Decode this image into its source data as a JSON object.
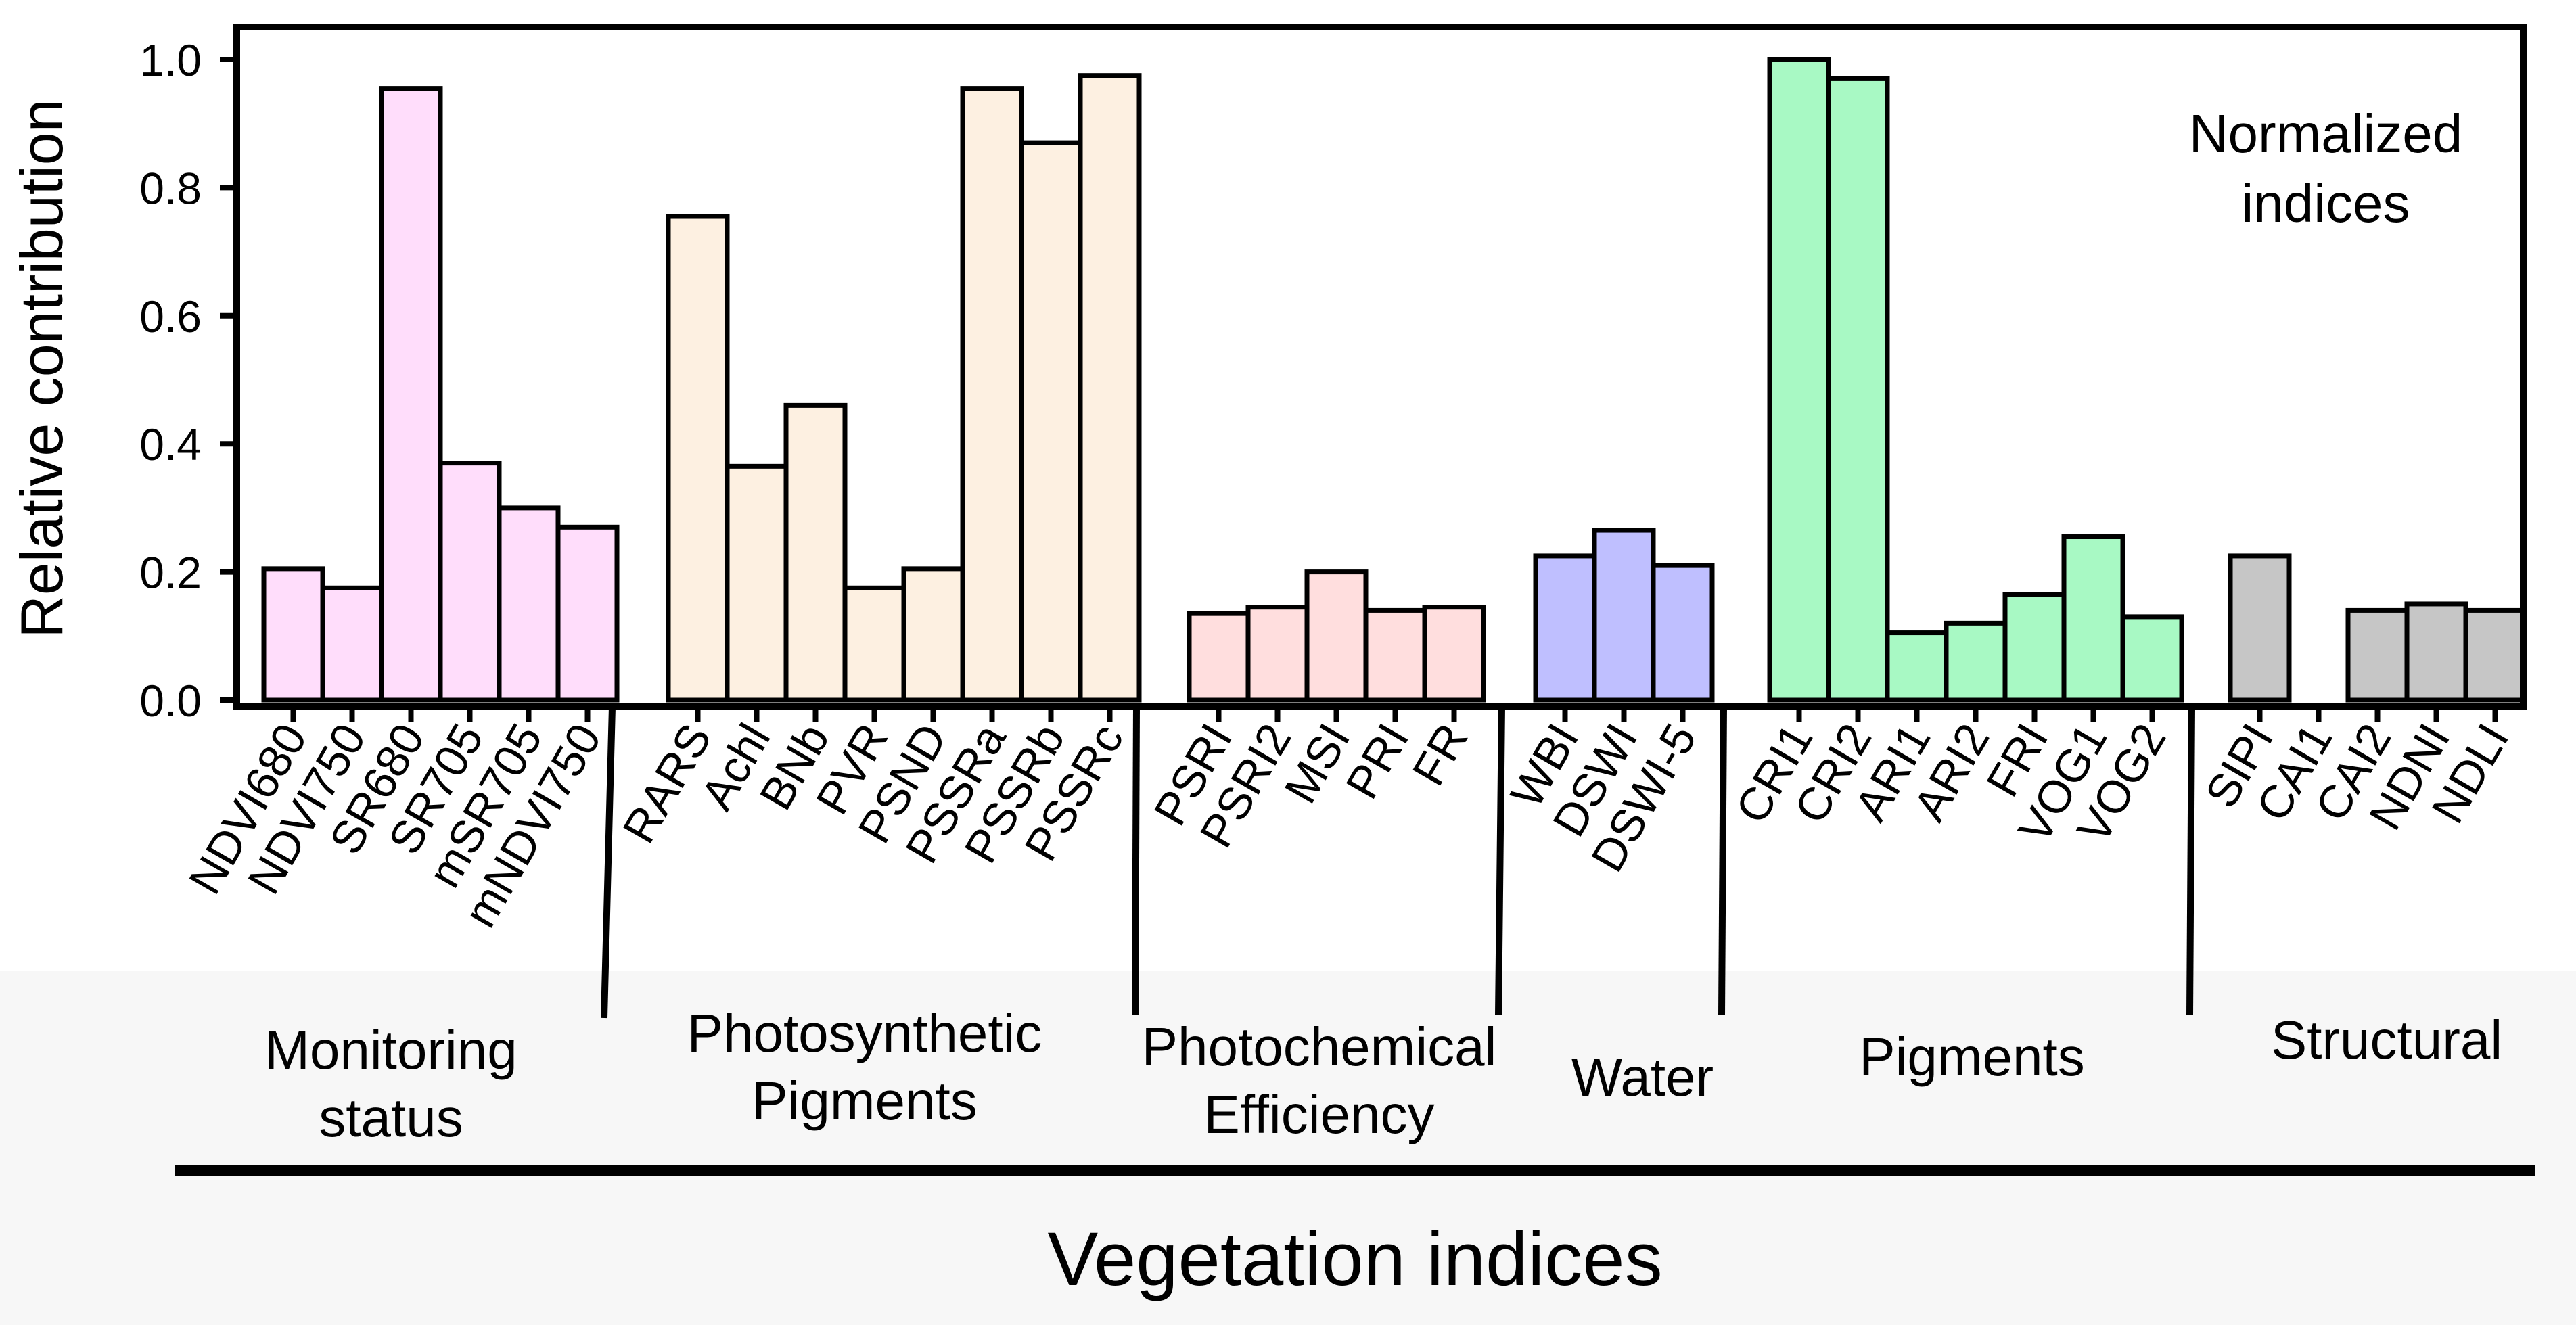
{
  "chart_data": {
    "type": "bar",
    "ylabel": "Relative contribution",
    "xlabel": "Vegetation indices",
    "annotation": [
      "Normalized",
      "indices"
    ],
    "ylim": [
      0,
      1.0
    ],
    "yticks": [
      "0.0",
      "0.2",
      "0.4",
      "0.6",
      "0.8",
      "1.0"
    ],
    "groups": [
      {
        "name": "Monitoring status",
        "name_lines": [
          "Monitoring",
          "status"
        ],
        "color": "#FFDDFB",
        "bars": [
          {
            "label": "NDVI680",
            "value": 0.205
          },
          {
            "label": "NDVI750",
            "value": 0.175
          },
          {
            "label": "SR680",
            "value": 0.955
          },
          {
            "label": "SR705",
            "value": 0.37
          },
          {
            "label": "mSR705",
            "value": 0.3
          },
          {
            "label": "mNDVI750",
            "value": 0.27
          }
        ]
      },
      {
        "name": "Photosynthetic Pigments",
        "name_lines": [
          "Photosynthetic",
          "Pigments"
        ],
        "color": "#FDF0E1",
        "bars": [
          {
            "label": "RARS",
            "value": 0.755
          },
          {
            "label": "Achl",
            "value": 0.365
          },
          {
            "label": "BNb",
            "value": 0.46
          },
          {
            "label": "PVR",
            "value": 0.175
          },
          {
            "label": "PSND",
            "value": 0.205
          },
          {
            "label": "PSSRa",
            "value": 0.955
          },
          {
            "label": "PSSRb",
            "value": 0.87
          },
          {
            "label": "PSSRc",
            "value": 0.975
          }
        ]
      },
      {
        "name": "Photochemical Efficiency",
        "name_lines": [
          "Photochemical",
          "Efficiency"
        ],
        "color": "#FFDEDE",
        "bars": [
          {
            "label": "PSRI",
            "value": 0.135
          },
          {
            "label": "PSRI2",
            "value": 0.145
          },
          {
            "label": "MSI",
            "value": 0.2
          },
          {
            "label": "PRI",
            "value": 0.14
          },
          {
            "label": "FR",
            "value": 0.145
          }
        ]
      },
      {
        "name": "Water",
        "name_lines": [
          "Water"
        ],
        "color": "#BFBFFF",
        "bars": [
          {
            "label": "WBI",
            "value": 0.225
          },
          {
            "label": "DSWI",
            "value": 0.265
          },
          {
            "label": "DSWI-5",
            "value": 0.21
          }
        ]
      },
      {
        "name": "Pigments",
        "name_lines": [
          "Pigments"
        ],
        "color": "#A8F9C4",
        "bars": [
          {
            "label": "CRI1",
            "value": 1.0
          },
          {
            "label": "CRI2",
            "value": 0.97
          },
          {
            "label": "ARI1",
            "value": 0.105
          },
          {
            "label": "ARI2",
            "value": 0.12
          },
          {
            "label": "FRI",
            "value": 0.165
          },
          {
            "label": "VOG1",
            "value": 0.255
          },
          {
            "label": "VOG2",
            "value": 0.13
          }
        ]
      },
      {
        "name": "Structural",
        "name_lines": [
          "Structural"
        ],
        "color": "#C6C6C6",
        "bars": [
          {
            "label": "SIPI",
            "value": 0.225
          },
          {
            "label": "CAI1",
            "value": 0
          },
          {
            "label": "CAI2",
            "value": 0.14
          },
          {
            "label": "NDNI",
            "value": 0.15
          },
          {
            "label": "NDLI",
            "value": 0.14
          }
        ]
      }
    ]
  }
}
